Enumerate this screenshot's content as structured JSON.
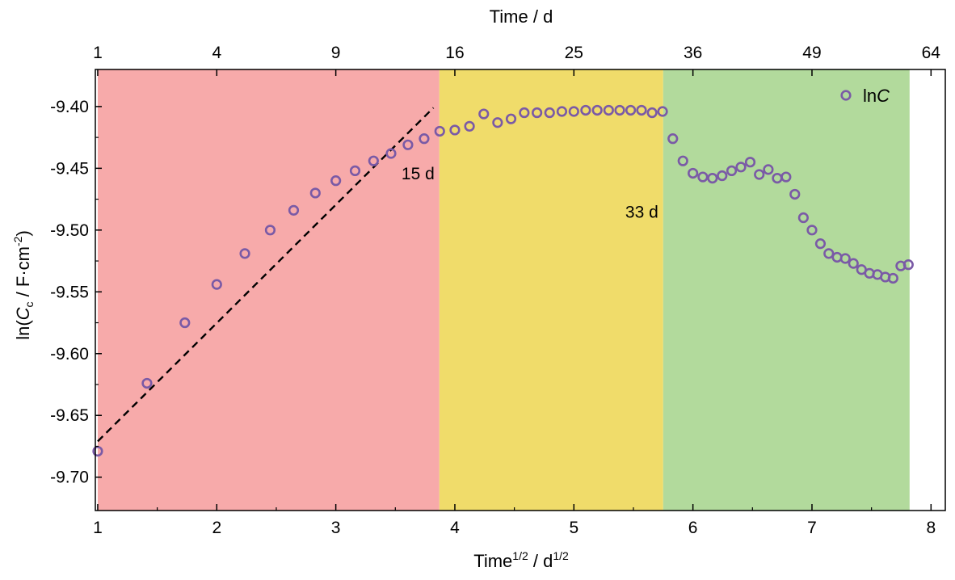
{
  "chart_data": {
    "type": "scatter",
    "x_label_base": "Time",
    "x_label_sup1": "1/2",
    "x_label_mid": " / d",
    "x_label_sup2": "1/2",
    "top_label": "Time / d",
    "y_label_pre": "ln(",
    "y_label_italic": "C",
    "y_label_sub": "c",
    "y_label_mid": " / F·cm",
    "y_label_sup": "-2",
    "y_label_post": ")",
    "xlim": [
      0.98,
      8.12
    ],
    "ylim": [
      -9.727,
      -9.37
    ],
    "x_ticks": [
      1,
      2,
      3,
      4,
      5,
      6,
      7,
      8
    ],
    "x_tick_labels": [
      "1",
      "2",
      "3",
      "4",
      "5",
      "6",
      "7",
      "8"
    ],
    "top_ticks": [
      1,
      2,
      3,
      4,
      5,
      6,
      7,
      8
    ],
    "top_tick_labels": [
      "1",
      "4",
      "9",
      "16",
      "25",
      "36",
      "49",
      "64"
    ],
    "y_ticks": [
      -9.7,
      -9.65,
      -9.6,
      -9.55,
      -9.5,
      -9.45,
      -9.4
    ],
    "y_tick_labels": [
      "-9.70",
      "-9.65",
      "-9.60",
      "-9.55",
      "-9.50",
      "-9.45",
      "-9.40"
    ],
    "regions": [
      {
        "x0": 1.0,
        "x1": 3.87,
        "color": "#f7aaaa"
      },
      {
        "x0": 3.87,
        "x1": 5.75,
        "color": "#f0dc6a"
      },
      {
        "x0": 5.75,
        "x1": 7.82,
        "color": "#b2da9c"
      }
    ],
    "annotations": [
      {
        "text": "15 d",
        "x": 3.87,
        "y": -9.459
      },
      {
        "text": "33 d",
        "x": 5.75,
        "y": -9.49
      }
    ],
    "fit_line": {
      "x0": 1.0,
      "y0": -9.671,
      "x1": 3.82,
      "y1": -9.401,
      "style": "dashed"
    },
    "series": [
      {
        "name": "lnC",
        "legend_text": "ln",
        "legend_italic": "C",
        "color": "#7a5aa6",
        "marker": "open-circle",
        "x": [
          1.0,
          1.414,
          1.732,
          2.0,
          2.236,
          2.449,
          2.646,
          2.828,
          3.0,
          3.162,
          3.317,
          3.464,
          3.606,
          3.742,
          3.873,
          4.0,
          4.123,
          4.243,
          4.359,
          4.472,
          4.583,
          4.69,
          4.796,
          4.899,
          5.0,
          5.099,
          5.196,
          5.292,
          5.385,
          5.477,
          5.568,
          5.657,
          5.745,
          5.831,
          5.916,
          6.0,
          6.083,
          6.164,
          6.245,
          6.325,
          6.403,
          6.481,
          6.557,
          6.633,
          6.708,
          6.782,
          6.856,
          6.928,
          7.0,
          7.071,
          7.141,
          7.211,
          7.28,
          7.348,
          7.416,
          7.483,
          7.55,
          7.616,
          7.681,
          7.746,
          7.81
        ],
        "y": [
          -9.679,
          -9.624,
          -9.575,
          -9.544,
          -9.519,
          -9.5,
          -9.484,
          -9.47,
          -9.46,
          -9.452,
          -9.444,
          -9.438,
          -9.431,
          -9.426,
          -9.42,
          -9.419,
          -9.416,
          -9.406,
          -9.413,
          -9.41,
          -9.405,
          -9.405,
          -9.405,
          -9.404,
          -9.404,
          -9.403,
          -9.403,
          -9.403,
          -9.403,
          -9.403,
          -9.403,
          -9.405,
          -9.404,
          -9.426,
          -9.444,
          -9.454,
          -9.457,
          -9.458,
          -9.456,
          -9.452,
          -9.449,
          -9.445,
          -9.455,
          -9.451,
          -9.458,
          -9.457,
          -9.471,
          -9.49,
          -9.5,
          -9.511,
          -9.519,
          -9.522,
          -9.523,
          -9.527,
          -9.532,
          -9.535,
          -9.536,
          -9.538,
          -9.539,
          -9.529,
          -9.528
        ]
      }
    ],
    "legend_position": "top-right"
  }
}
